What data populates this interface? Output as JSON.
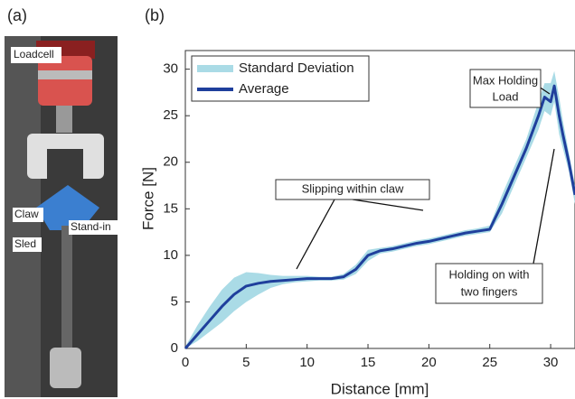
{
  "panel_a": {
    "label": "(a)",
    "parts": [
      "Loadcell",
      "Claw",
      "Stand-in",
      "Sled"
    ]
  },
  "chart_data": {
    "type": "line",
    "panel_label": "(b)",
    "x_label": "Distance [mm]",
    "y_label": "Force [N]",
    "x": [
      0,
      1,
      2,
      3,
      4,
      5,
      6,
      7,
      8,
      9,
      10,
      11,
      12,
      13,
      14,
      15,
      16,
      17,
      18,
      19,
      20,
      21,
      22,
      23,
      24,
      25,
      26,
      27,
      28,
      29,
      29.5,
      30,
      30.3,
      30.7,
      31,
      31.5,
      32
    ],
    "series": [
      {
        "name": "Standard Deviation",
        "color": "#aadbe6",
        "upper": [
          0.2,
          2.5,
          4.5,
          6.3,
          7.6,
          8.2,
          8.1,
          7.9,
          7.8,
          7.8,
          7.8,
          7.7,
          7.7,
          8.0,
          9.0,
          10.6,
          10.8,
          11.0,
          11.3,
          11.6,
          11.8,
          12.1,
          12.4,
          12.7,
          12.9,
          13.2,
          16.5,
          19.5,
          22.5,
          26.5,
          28.5,
          28.5,
          29.8,
          27.0,
          24.5,
          21.0,
          17.5
        ],
        "lower": [
          0,
          0.8,
          1.8,
          2.8,
          4.0,
          5.0,
          5.8,
          6.5,
          6.9,
          7.1,
          7.2,
          7.3,
          7.3,
          7.4,
          8.0,
          9.4,
          10.2,
          10.4,
          10.7,
          11.0,
          11.2,
          11.5,
          11.8,
          12.1,
          12.3,
          12.5,
          14.5,
          17.5,
          20.5,
          23.5,
          25.5,
          25.0,
          26.5,
          23.0,
          21.5,
          19.0,
          15.5
        ]
      },
      {
        "name": "Average",
        "color": "#1f3f9c",
        "values": [
          0,
          1.5,
          3,
          4.5,
          5.8,
          6.7,
          7.0,
          7.2,
          7.3,
          7.4,
          7.5,
          7.5,
          7.5,
          7.7,
          8.5,
          10.0,
          10.5,
          10.7,
          11.0,
          11.3,
          11.5,
          11.8,
          12.1,
          12.4,
          12.6,
          12.8,
          15.5,
          18.5,
          21.5,
          25.0,
          27.0,
          26.5,
          28.2,
          25.0,
          23.0,
          20.0,
          16.5
        ]
      }
    ],
    "xlim": [
      0,
      32
    ],
    "ylim": [
      0,
      32
    ],
    "xticks": [
      0,
      5,
      10,
      15,
      20,
      25,
      30
    ],
    "yticks": [
      0,
      5,
      10,
      15,
      20,
      25,
      30
    ],
    "annotations": [
      "Slipping within claw",
      "Max Holding",
      "Load",
      "Holding on with",
      "two fingers"
    ]
  }
}
